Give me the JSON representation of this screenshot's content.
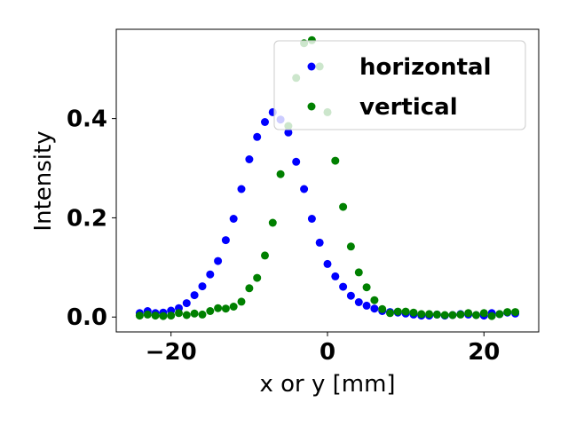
{
  "chart_data": {
    "type": "scatter",
    "xlabel": "x or y [mm]",
    "ylabel": "Intensity",
    "xlim": [
      -27,
      27
    ],
    "ylim": [
      -0.03,
      0.58
    ],
    "xticks": [
      -20,
      0,
      20
    ],
    "xtick_labels": [
      "−20",
      "0",
      "20"
    ],
    "yticks": [
      0.0,
      0.2,
      0.4
    ],
    "ytick_labels": [
      "0.0",
      "0.2",
      "0.4"
    ],
    "grid": false,
    "legend_position": "top-right",
    "series": [
      {
        "name": "horizontal",
        "color": "#0000ff",
        "x": [
          -24,
          -23,
          -22,
          -21,
          -20,
          -19,
          -18,
          -17,
          -16,
          -15,
          -14,
          -13,
          -12,
          -11,
          -10,
          -9,
          -8,
          -7,
          -6,
          -5,
          -4,
          -3,
          -2,
          -1,
          0,
          1,
          2,
          3,
          4,
          5,
          6,
          7,
          8,
          9,
          10,
          11,
          12,
          13,
          14,
          15,
          16,
          17,
          18,
          19,
          20,
          21,
          22,
          23,
          24
        ],
        "y": [
          0.008,
          0.012,
          0.008,
          0.009,
          0.013,
          0.018,
          0.028,
          0.044,
          0.062,
          0.086,
          0.113,
          0.155,
          0.198,
          0.258,
          0.318,
          0.363,
          0.393,
          0.413,
          0.398,
          0.372,
          0.313,
          0.258,
          0.198,
          0.15,
          0.107,
          0.082,
          0.061,
          0.043,
          0.03,
          0.023,
          0.017,
          0.012,
          0.01,
          0.009,
          0.007,
          0.005,
          0.003,
          0.003,
          0.005,
          0.003,
          0.004,
          0.006,
          0.005,
          0.004,
          0.003,
          0.008,
          0.006,
          0.009,
          0.007
        ]
      },
      {
        "name": "vertical",
        "color": "#008000",
        "x": [
          -24,
          -23,
          -22,
          -21,
          -20,
          -19,
          -18,
          -17,
          -16,
          -15,
          -14,
          -13,
          -12,
          -11,
          -10,
          -9,
          -8,
          -7,
          -6,
          -5,
          -4,
          -3,
          -2,
          -1,
          0,
          1,
          2,
          3,
          4,
          5,
          6,
          7,
          8,
          9,
          10,
          11,
          12,
          13,
          14,
          15,
          16,
          17,
          18,
          19,
          20,
          21,
          22,
          23,
          24
        ],
        "y": [
          0.003,
          0.005,
          0.003,
          0.002,
          0.003,
          0.008,
          0.004,
          0.007,
          0.005,
          0.012,
          0.018,
          0.017,
          0.021,
          0.031,
          0.058,
          0.079,
          0.124,
          0.19,
          0.288,
          0.385,
          0.482,
          0.552,
          0.558,
          0.505,
          0.413,
          0.315,
          0.222,
          0.142,
          0.09,
          0.06,
          0.034,
          0.016,
          0.008,
          0.011,
          0.011,
          0.009,
          0.006,
          0.006,
          0.005,
          0.004,
          0.004,
          0.005,
          0.008,
          0.004,
          0.008,
          0.002,
          0.006,
          0.01,
          0.01
        ]
      }
    ]
  }
}
